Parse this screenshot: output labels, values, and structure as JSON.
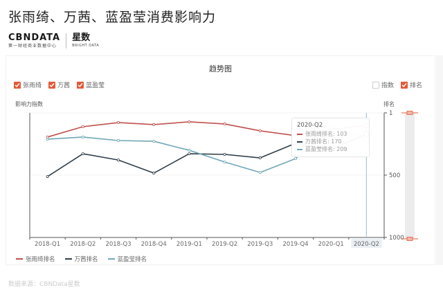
{
  "header": {
    "title": "张雨绮、万茜、蓝盈莹消费影响力",
    "brand": {
      "cbn_name": "CBNDATA",
      "cbn_sub": "第一财经商业数据中心",
      "star_name": "星数",
      "star_sub": "BRIGHT DATA"
    }
  },
  "chart_card": {
    "title": "趋势图",
    "series_toggles": [
      {
        "label": "张雨绮",
        "checked": true
      },
      {
        "label": "万茜",
        "checked": true
      },
      {
        "label": "蓝盈莹",
        "checked": true
      }
    ],
    "metric_toggles": [
      {
        "label": "指数",
        "checked": false
      },
      {
        "label": "排名",
        "checked": true
      }
    ],
    "left_axis_title": "影响力指数",
    "right_axis_title": "排名",
    "tooltip": {
      "title": "2020-Q2",
      "rows": [
        {
          "label": "张雨绮排名: 103",
          "color": "#c0504d"
        },
        {
          "label": "万茜排名: 170",
          "color": "#2f3e4a"
        },
        {
          "label": "蓝盈莹排名: 209",
          "color": "#6fa6b6"
        }
      ]
    },
    "bottom_legend": [
      {
        "label": "张雨绮排名",
        "color": "#c0504d"
      },
      {
        "label": "万茜排名",
        "color": "#2f3e4a"
      },
      {
        "label": "蓝盈莹排名",
        "color": "#6fa6b6"
      }
    ]
  },
  "source": "数据来源：CBNData星数",
  "colors": {
    "accent": "#e25a3a",
    "series_zhang": "#c0504d",
    "series_wan": "#2f3e4a",
    "series_lan": "#6fa6b6",
    "highlight_x": "#a8c9d6"
  },
  "chart_data": {
    "type": "line",
    "title": "趋势图",
    "xlabel": "",
    "ylabel": "排名",
    "ylabel_left": "影响力指数",
    "categories": [
      "2018-Q1",
      "2018-Q2",
      "2018-Q3",
      "2018-Q4",
      "2019-Q1",
      "2019-Q2",
      "2019-Q3",
      "2019-Q4",
      "2020-Q1",
      "2020-Q2"
    ],
    "series": [
      {
        "name": "张雨绮排名",
        "values": [
          195,
          112,
          79,
          95,
          73,
          90,
          145,
          184,
          134,
          103
        ]
      },
      {
        "name": "万茜排名",
        "values": [
          512,
          329,
          379,
          484,
          329,
          334,
          362,
          245,
          295,
          170
        ]
      },
      {
        "name": "蓝盈莹排名",
        "values": [
          212,
          195,
          223,
          229,
          301,
          395,
          479,
          368,
          118,
          209
        ]
      }
    ],
    "yaxis_right": {
      "ticks": [
        1,
        500,
        1000
      ],
      "inverted": true,
      "ylim": [
        1,
        1000
      ]
    },
    "highlighted_category": "2020-Q2",
    "legend_position": "bottom",
    "grid": false
  }
}
